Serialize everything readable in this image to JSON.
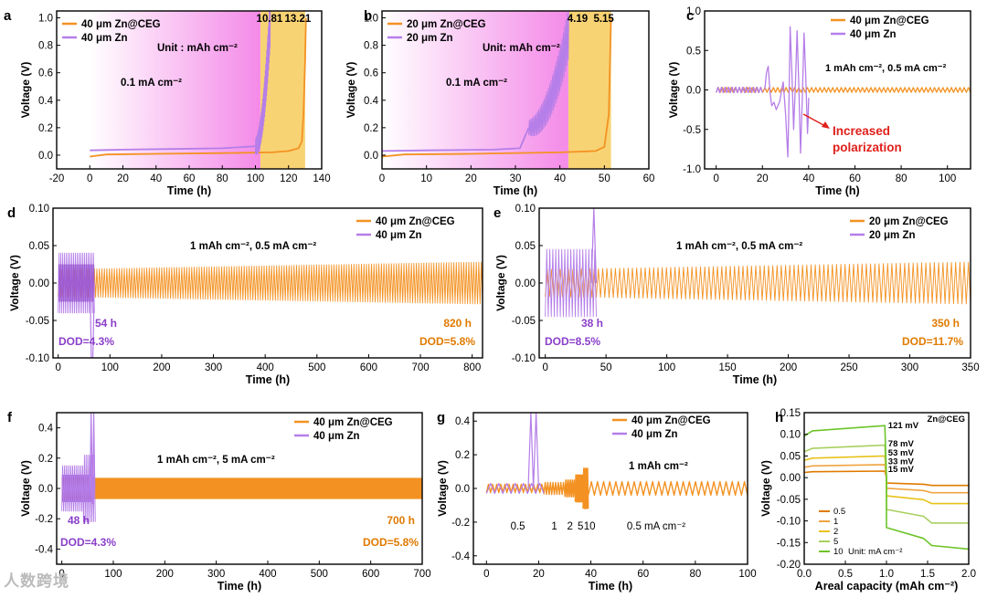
{
  "colors": {
    "zn": "#b57ee8",
    "zn_dark": "#8a3fc9",
    "ceg": "#f39222",
    "ceg_dark": "#e07a00",
    "red": "#e0201b",
    "pink": "#f48ae8",
    "gold": "#f8d374"
  },
  "watermark": "人数跨境",
  "chart_data": [
    {
      "panel": "a",
      "type": "line",
      "xlabel": "Time (h)",
      "ylabel": "Voltage (V)",
      "xlim": [
        -20,
        140
      ],
      "ylim": [
        -0.1,
        1.05
      ],
      "xticks": [
        -20,
        0,
        20,
        40,
        60,
        80,
        100,
        120,
        140
      ],
      "yticks": [
        0.0,
        0.2,
        0.4,
        0.6,
        0.8,
        1.0
      ],
      "legend": [
        "40 μm Zn@CEG",
        "40 μm Zn"
      ],
      "annotations": [
        "Unit : mAh cm⁻²",
        "0.1 mA cm⁻²",
        "10.81",
        "13.21"
      ],
      "shade": {
        "pink": [
          0,
          103
        ],
        "gold": [
          103,
          130
        ]
      },
      "series": [
        {
          "name": "40 μm Zn@CEG",
          "x": [
            0,
            10,
            40,
            80,
            110,
            120,
            126,
            128,
            129,
            130,
            130.5
          ],
          "y": [
            -0.01,
            0.005,
            0.01,
            0.015,
            0.02,
            0.03,
            0.05,
            0.1,
            0.3,
            0.7,
            1.0
          ]
        },
        {
          "name": "40 μm Zn",
          "x": [
            0,
            20,
            50,
            80,
            100,
            103,
            105,
            106,
            107,
            108,
            109
          ],
          "y": [
            0.035,
            0.04,
            0.045,
            0.05,
            0.065,
            0.1,
            0.25,
            0.45,
            0.6,
            0.75,
            1.0
          ]
        }
      ]
    },
    {
      "panel": "b",
      "type": "line",
      "xlabel": "Time (h)",
      "ylabel": "Voltage (V)",
      "xlim": [
        0,
        60
      ],
      "ylim": [
        -0.1,
        1.05
      ],
      "xticks": [
        0,
        10,
        20,
        30,
        40,
        50,
        60
      ],
      "yticks": [
        0.0,
        0.2,
        0.4,
        0.6,
        0.8,
        1.0
      ],
      "legend": [
        "20 μm Zn@CEG",
        "20 μm Zn"
      ],
      "annotations": [
        "Unit: mAh cm⁻²",
        "0.1 mA cm⁻²",
        "4.19",
        "5.15"
      ],
      "shade": {
        "pink": [
          0,
          41.9
        ],
        "gold": [
          41.9,
          51.5
        ]
      },
      "series": [
        {
          "name": "20 μm Zn@CEG",
          "x": [
            0,
            5,
            20,
            40,
            48,
            50,
            51,
            51.5
          ],
          "y": [
            -0.01,
            0.005,
            0.01,
            0.02,
            0.03,
            0.06,
            0.3,
            1.0
          ]
        },
        {
          "name": "20 μm Zn",
          "x": [
            0,
            10,
            25,
            31,
            33,
            35,
            38,
            40,
            41,
            42
          ],
          "y": [
            0.03,
            0.035,
            0.04,
            0.05,
            0.2,
            0.3,
            0.45,
            0.55,
            0.7,
            0.9
          ]
        }
      ]
    },
    {
      "panel": "c",
      "type": "line",
      "xlabel": "Time (h)",
      "ylabel": "Voltage (V)",
      "xlim": [
        -5,
        110
      ],
      "ylim": [
        -1.0,
        1.0
      ],
      "xticks": [
        0,
        20,
        40,
        60,
        80,
        100
      ],
      "yticks": [
        -1.0,
        -0.5,
        0.0,
        0.5,
        1.0
      ],
      "legend": [
        "40 μm Zn@CEG",
        "40 μm Zn"
      ],
      "annotations": [
        "1 mAh cm⁻², 0.5 mA cm⁻²",
        "Increased polarization"
      ],
      "series": [
        {
          "name": "40 μm Zn@CEG",
          "x": [
            0,
            110
          ],
          "amplitude": 0.03
        },
        {
          "name": "40 μm Zn",
          "x": [
            0,
            40
          ],
          "peaks": [
            0.3,
            -0.25,
            0.8,
            -0.85,
            0.75,
            -0.55
          ]
        }
      ]
    },
    {
      "panel": "d",
      "type": "line",
      "xlabel": "Time (h)",
      "ylabel": "Voltage (V)",
      "xlim": [
        -10,
        820
      ],
      "ylim": [
        -0.1,
        0.1
      ],
      "xticks": [
        0,
        100,
        200,
        300,
        400,
        500,
        600,
        700,
        800
      ],
      "yticks": [
        -0.1,
        -0.05,
        0.0,
        0.05,
        0.1
      ],
      "legend": [
        "40 μm Zn@CEG",
        "40 μm Zn"
      ],
      "annotations": [
        "1 mAh cm⁻², 0.5 mA cm⁻²",
        "54 h",
        "DOD=4.3%",
        "820 h",
        "DOD=5.8%"
      ],
      "series": [
        {
          "name": "40 μm Zn@CEG",
          "x": [
            0,
            820
          ],
          "amp_start": 0.018,
          "amp_end": 0.028
        },
        {
          "name": "40 μm Zn",
          "x": [
            0,
            70
          ],
          "amp": 0.04,
          "failure": -0.1
        }
      ]
    },
    {
      "panel": "e",
      "type": "line",
      "xlabel": "Time (h)",
      "ylabel": "Voltage (V)",
      "xlim": [
        -5,
        350
      ],
      "ylim": [
        -0.1,
        0.1
      ],
      "xticks": [
        0,
        50,
        100,
        150,
        200,
        250,
        300,
        350
      ],
      "yticks": [
        -0.1,
        -0.05,
        0.0,
        0.05,
        0.1
      ],
      "legend": [
        "20 μm Zn@CEG",
        "20 μm Zn"
      ],
      "annotations": [
        "1 mAh cm⁻², 0.5 mA cm⁻²",
        "38 h",
        "DOD=8.5%",
        "350 h",
        "DOD=11.7%"
      ],
      "series": [
        {
          "name": "20 μm Zn@CEG",
          "x": [
            0,
            350
          ],
          "amp_start": 0.018,
          "amp_end": 0.028
        },
        {
          "name": "20 μm Zn",
          "x": [
            0,
            42
          ],
          "amp": 0.045
        }
      ]
    },
    {
      "panel": "f",
      "type": "line",
      "xlabel": "Time (h)",
      "ylabel": "Voltage (V)",
      "xlim": [
        -10,
        700
      ],
      "ylim": [
        -0.5,
        0.5
      ],
      "xticks": [
        0,
        100,
        200,
        300,
        400,
        500,
        600,
        700
      ],
      "yticks": [
        -0.4,
        -0.2,
        0.0,
        0.2,
        0.4
      ],
      "legend": [
        "40 μm Zn@CEG",
        "40 μm Zn"
      ],
      "annotations": [
        "1 mAh cm⁻², 5 mA cm⁻²",
        "48 h",
        "DOD=4.3%",
        "700 h",
        "DOD=5.8%"
      ],
      "series": [
        {
          "name": "40 μm Zn@CEG",
          "x": [
            0,
            700
          ],
          "amp": 0.05
        },
        {
          "name": "40 μm Zn",
          "x": [
            0,
            65
          ],
          "amp": 0.2
        }
      ]
    },
    {
      "panel": "g",
      "type": "line",
      "xlabel": "Time (h)",
      "ylabel": "Voltage (V)",
      "xlim": [
        -5,
        100
      ],
      "ylim": [
        -0.45,
        0.45
      ],
      "xticks": [
        0,
        20,
        40,
        60,
        80,
        100
      ],
      "yticks": [
        -0.4,
        -0.2,
        0.0,
        0.2,
        0.4
      ],
      "legend": [
        "40 μm Zn@CEG",
        "40 μm Zn"
      ],
      "annotations": [
        "1 mAh cm⁻²",
        "0.5",
        "1",
        "2",
        "5",
        "10",
        "0.5 mA cm⁻²"
      ],
      "series": [
        {
          "name": "40 μm Zn@CEG",
          "x": [
            0,
            100
          ]
        },
        {
          "name": "40 μm Zn",
          "x": [
            0,
            22
          ]
        }
      ]
    },
    {
      "panel": "h",
      "type": "line",
      "xlabel": "Areal capacity (mAh cm⁻²)",
      "ylabel": "Voltage (V)",
      "xlim": [
        0,
        2.0
      ],
      "ylim": [
        -0.2,
        0.15
      ],
      "xticks": [
        0.0,
        0.5,
        1.0,
        1.5,
        2.0
      ],
      "yticks": [
        -0.2,
        -0.15,
        -0.1,
        -0.05,
        0.0,
        0.05,
        0.1,
        0.15
      ],
      "title": "Zn@CEG",
      "legend": [
        "0.5",
        "1",
        "2",
        "5",
        "10"
      ],
      "legend_unit": "Unit: mA cm⁻²",
      "annotations": [
        "121 mV",
        "78 mV",
        "53 mV",
        "33 mV",
        "15 mV"
      ],
      "series": [
        {
          "name": "0.5",
          "plating": 0.015,
          "stripping": -0.018
        },
        {
          "name": "1",
          "plating": 0.03,
          "stripping": -0.035
        },
        {
          "name": "2",
          "plating": 0.05,
          "stripping": -0.06
        },
        {
          "name": "5",
          "plating": 0.075,
          "stripping": -0.105
        },
        {
          "name": "10",
          "plating": 0.12,
          "stripping": -0.165
        }
      ]
    }
  ],
  "panel_labels": [
    "a",
    "b",
    "c",
    "d",
    "e",
    "f",
    "g",
    "h"
  ]
}
